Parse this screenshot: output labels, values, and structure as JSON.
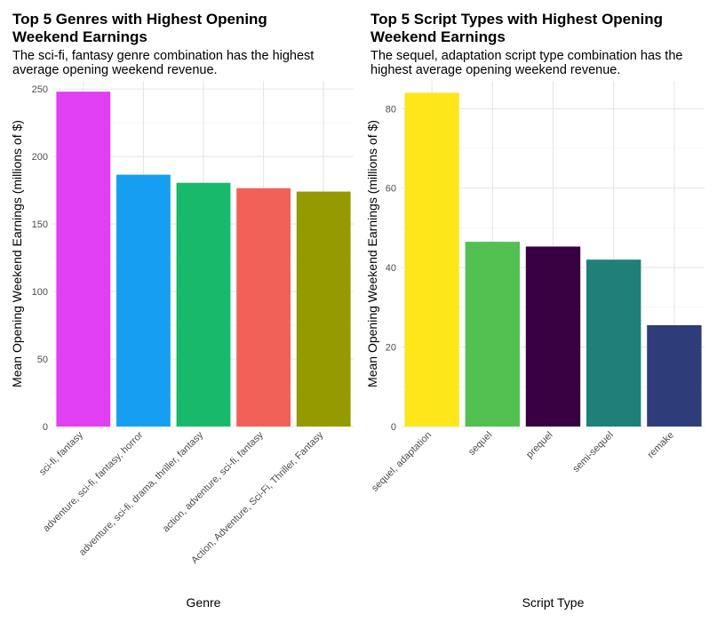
{
  "chart_data": [
    {
      "type": "bar",
      "title": "Top 5 Genres with Highest Opening Weekend Earnings",
      "subtitle": "The sci-fi, fantasy genre combination has the highest average opening weekend revenue.",
      "xlabel": "Genre",
      "ylabel": "Mean Opening Weekend Earnings (millions of $)",
      "categories": [
        "sci-fi, fantasy",
        "adventure, sci-fi, fantasy, horror",
        "adventure, sci-fi, drama, thriller, fantasy",
        "action, adventure, sci-fi, fantasy",
        "Action, Adventure, Sci-Fi, Thriller, Fantasy"
      ],
      "values": [
        248,
        186.5,
        180.5,
        176.5,
        174
      ],
      "colors": [
        "#e040f2",
        "#169ff2",
        "#18b96b",
        "#f26158",
        "#959a00"
      ],
      "ylim": [
        0,
        256
      ],
      "yticks": [
        0,
        50,
        100,
        150,
        200,
        250
      ],
      "grid": true,
      "legend": "none"
    },
    {
      "type": "bar",
      "title": "Top 5 Script Types with Highest Opening Weekend Earnings",
      "subtitle": "The sequel, adaptation script type combination has the highest average opening weekend revenue.",
      "xlabel": "Script Type",
      "ylabel": "Mean Opening Weekend Earnings (millions of $)",
      "categories": [
        "sequel, adaptation",
        "sequel",
        "prequel",
        "semi-sequel",
        "remake"
      ],
      "values": [
        84,
        46.5,
        45.3,
        42,
        25.5
      ],
      "colors": [
        "#fde619",
        "#52c152",
        "#370141",
        "#1f8077",
        "#2e3c79"
      ],
      "ylim": [
        0,
        87
      ],
      "yticks": [
        0,
        20,
        40,
        60,
        80
      ],
      "grid": true,
      "legend": "none"
    }
  ]
}
